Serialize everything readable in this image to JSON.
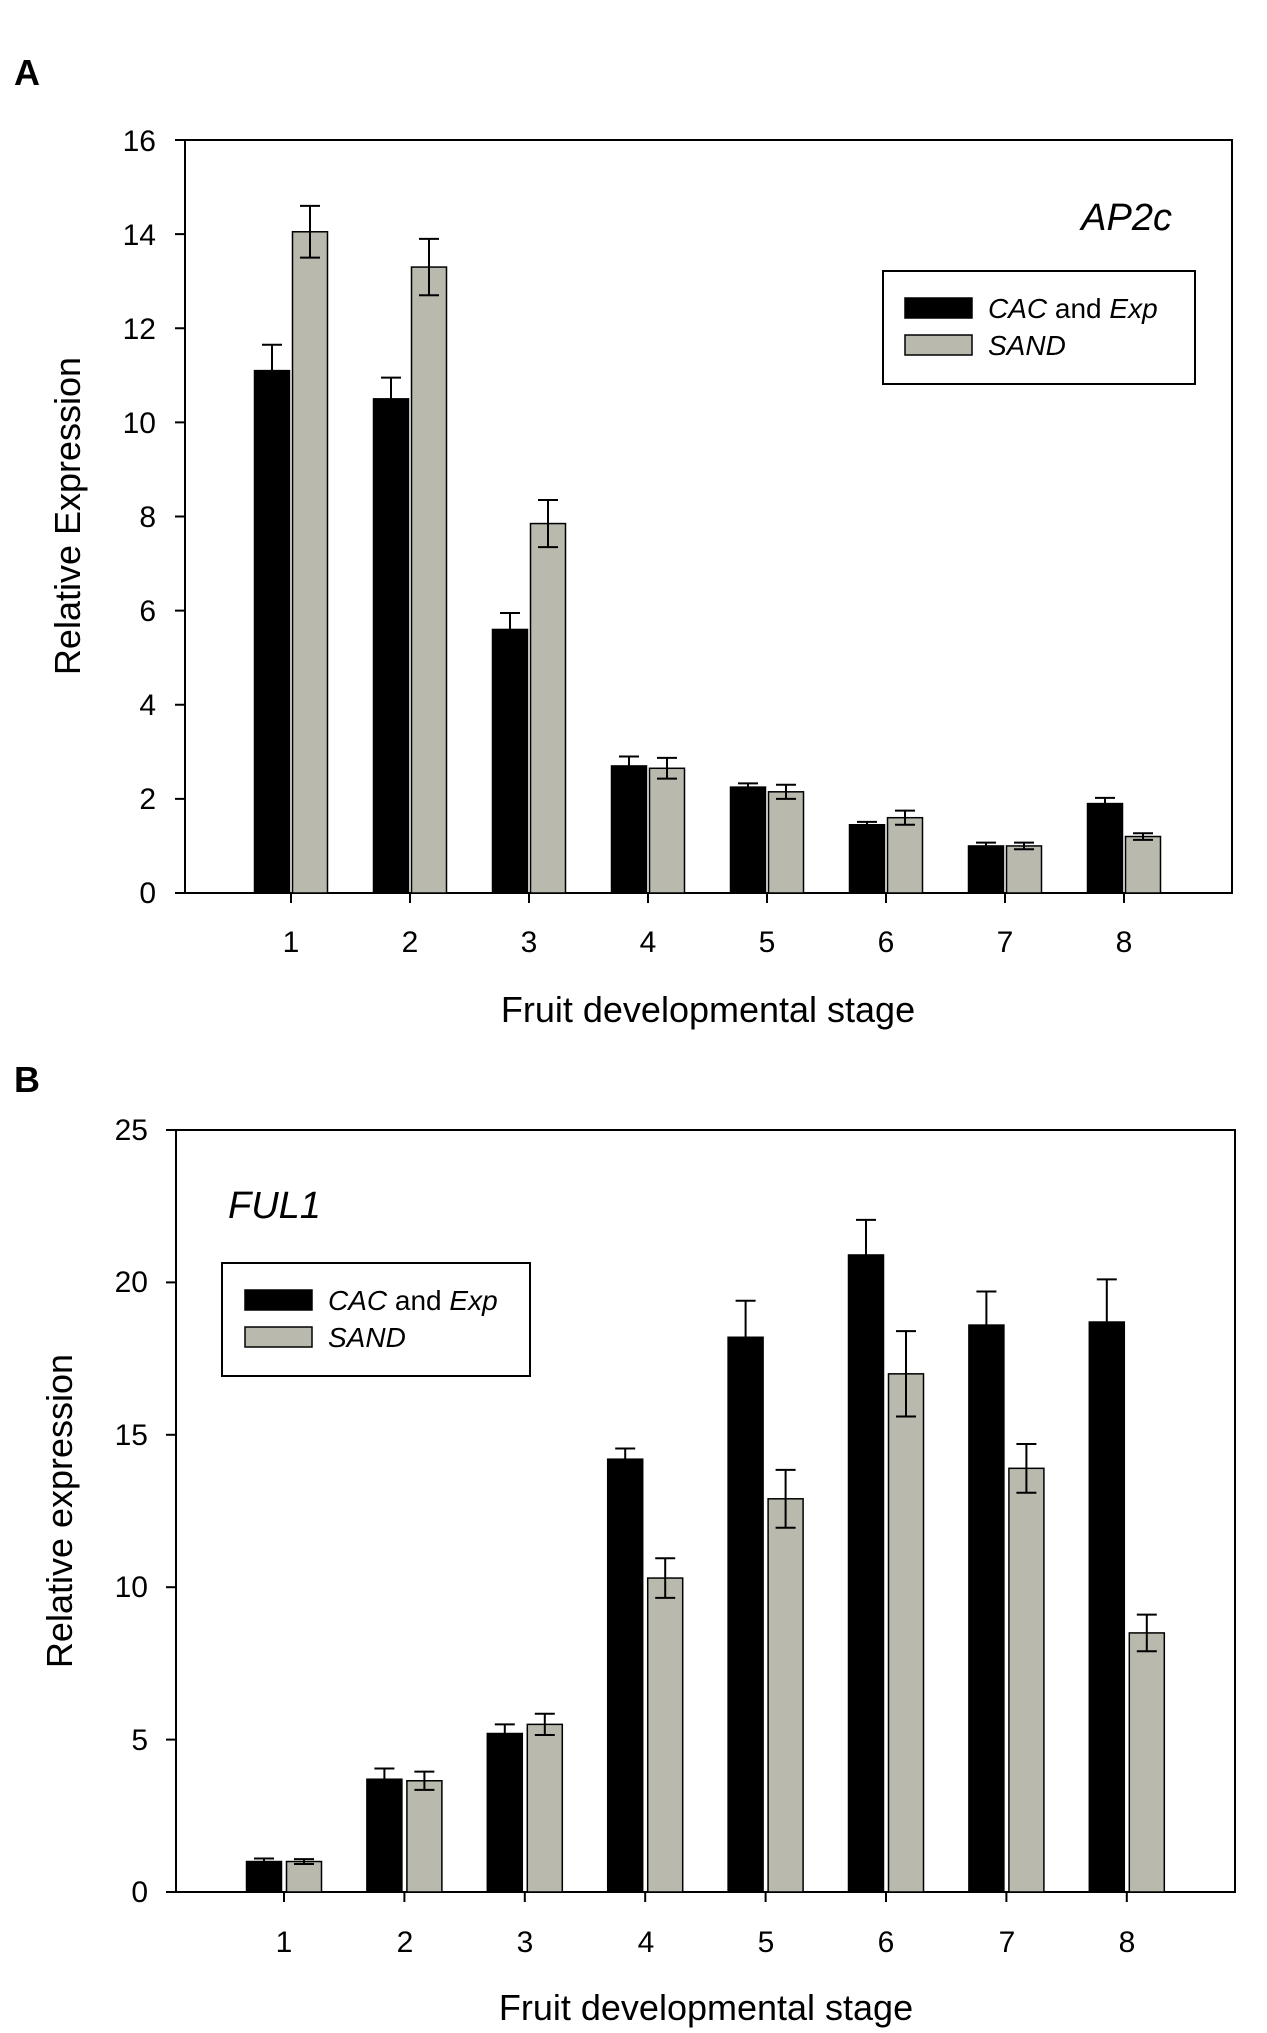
{
  "figure": {
    "colors": {
      "series1": "#000000",
      "series2": "#b9b9ae",
      "axis": "#000000",
      "background": "#ffffff"
    }
  },
  "chart_data": [
    {
      "type": "bar",
      "panel": "A",
      "gene_label": "AP2c",
      "categories": [
        "1",
        "2",
        "3",
        "4",
        "5",
        "6",
        "7",
        "8"
      ],
      "series": [
        {
          "name": "CAC and Exp",
          "legend_italic": "CAC",
          "legend_plain": " and ",
          "legend_italic2": "Exp",
          "color": "#000000",
          "values": [
            11.1,
            10.5,
            5.6,
            2.7,
            2.25,
            1.45,
            1.0,
            1.9
          ],
          "errors": [
            0.55,
            0.45,
            0.35,
            0.2,
            0.08,
            0.06,
            0.07,
            0.12
          ]
        },
        {
          "name": "SAND",
          "legend_italic": "SAND",
          "legend_plain": "",
          "legend_italic2": "",
          "color": "#b9b9ae",
          "values": [
            14.05,
            13.3,
            7.85,
            2.65,
            2.15,
            1.6,
            1.0,
            1.2
          ],
          "errors": [
            0.55,
            0.6,
            0.5,
            0.22,
            0.15,
            0.15,
            0.07,
            0.07
          ]
        }
      ],
      "ylim": [
        0,
        16
      ],
      "yticks": [
        "0",
        "2",
        "4",
        "6",
        "8",
        "10",
        "12",
        "14",
        "16"
      ],
      "xlabel": "Fruit developmental stage",
      "ylabel": "Relative Expression",
      "legend_position": "top-right"
    },
    {
      "type": "bar",
      "panel": "B",
      "gene_label": "FUL1",
      "categories": [
        "1",
        "2",
        "3",
        "4",
        "5",
        "6",
        "7",
        "8"
      ],
      "series": [
        {
          "name": "CAC and Exp",
          "legend_italic": "CAC",
          "legend_plain": " and ",
          "legend_italic2": "Exp",
          "color": "#000000",
          "values": [
            1.0,
            3.7,
            5.2,
            14.2,
            18.2,
            20.9,
            18.6,
            18.7
          ],
          "errors": [
            0.1,
            0.35,
            0.3,
            0.35,
            1.2,
            1.15,
            1.1,
            1.4
          ]
        },
        {
          "name": "SAND",
          "legend_italic": "SAND",
          "legend_plain": "",
          "legend_italic2": "",
          "color": "#b9b9ae",
          "values": [
            1.0,
            3.65,
            5.5,
            10.3,
            12.9,
            17.0,
            13.9,
            8.5
          ],
          "errors": [
            0.08,
            0.3,
            0.35,
            0.65,
            0.95,
            1.4,
            0.8,
            0.6
          ]
        }
      ],
      "ylim": [
        0,
        25
      ],
      "yticks": [
        "0",
        "5",
        "10",
        "15",
        "20",
        "25"
      ],
      "xlabel": "Fruit developmental stage",
      "ylabel": "Relative expression",
      "legend_position": "top-left"
    }
  ]
}
